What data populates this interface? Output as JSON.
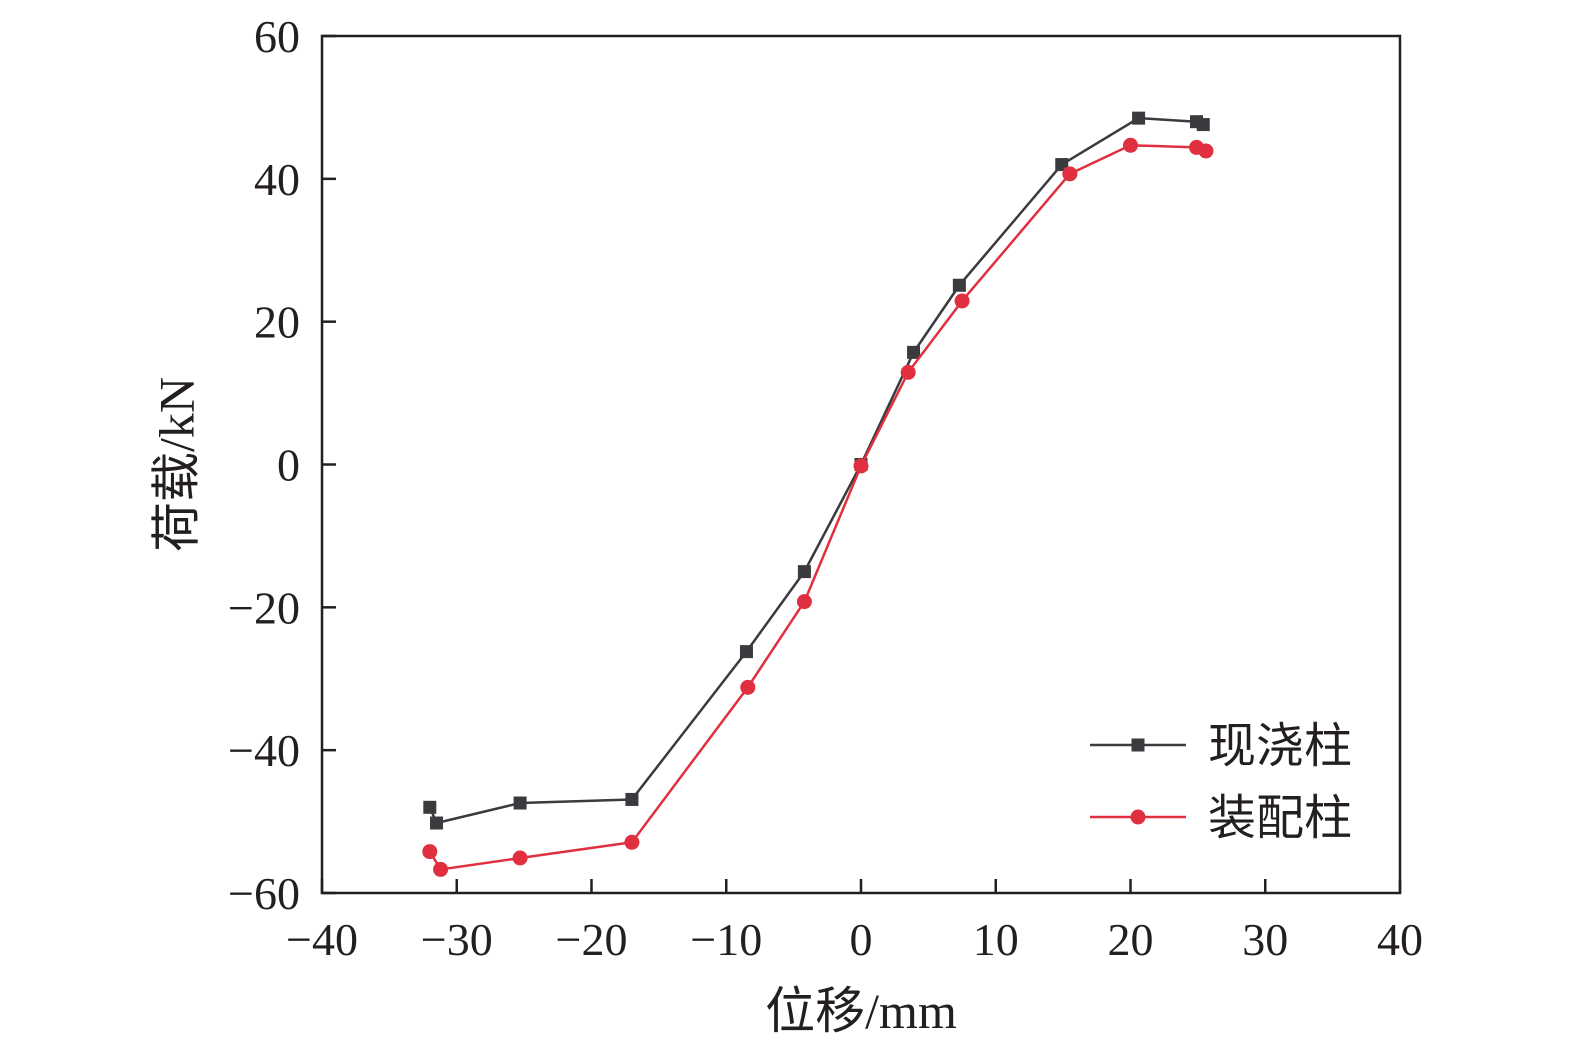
{
  "chart_data": {
    "type": "line",
    "xlabel": "位移/mm",
    "ylabel": "荷载/kN",
    "xlim": [
      -40,
      40
    ],
    "ylim": [
      -60,
      60
    ],
    "xticks": [
      -40,
      -30,
      -20,
      -10,
      0,
      10,
      20,
      30,
      40
    ],
    "yticks": [
      -60,
      -40,
      -20,
      0,
      20,
      40,
      60
    ],
    "xtick_labels": [
      "−40",
      "−30",
      "−20",
      "−10",
      "0",
      "10",
      "20",
      "30",
      "40"
    ],
    "ytick_labels": [
      "−60",
      "−40",
      "−20",
      "0",
      "20",
      "40",
      "60"
    ],
    "grid": false,
    "legend_position": "bottom-right",
    "series": [
      {
        "name": "现浇柱",
        "color": "#3a3a3f",
        "marker": "square",
        "points": [
          [
            -32.0,
            -48.0
          ],
          [
            -31.5,
            -50.2
          ],
          [
            -25.3,
            -47.4
          ],
          [
            -17.0,
            -46.9
          ],
          [
            -8.5,
            -26.2
          ],
          [
            -4.2,
            -15.0
          ],
          [
            0.0,
            0.0
          ],
          [
            3.9,
            15.7
          ],
          [
            7.3,
            25.1
          ],
          [
            14.9,
            42.0
          ],
          [
            20.6,
            48.5
          ],
          [
            24.9,
            48.0
          ],
          [
            25.4,
            47.6
          ]
        ]
      },
      {
        "name": "装配柱",
        "color": "#e03040",
        "marker": "circle",
        "points": [
          [
            -32.0,
            -54.2
          ],
          [
            -31.2,
            -56.7
          ],
          [
            -25.3,
            -55.1
          ],
          [
            -17.0,
            -52.9
          ],
          [
            -8.4,
            -31.2
          ],
          [
            -4.2,
            -19.2
          ],
          [
            0.0,
            -0.2
          ],
          [
            3.5,
            12.9
          ],
          [
            7.5,
            22.9
          ],
          [
            15.5,
            40.7
          ],
          [
            20.0,
            44.7
          ],
          [
            24.9,
            44.4
          ],
          [
            25.6,
            43.9
          ]
        ]
      }
    ]
  }
}
